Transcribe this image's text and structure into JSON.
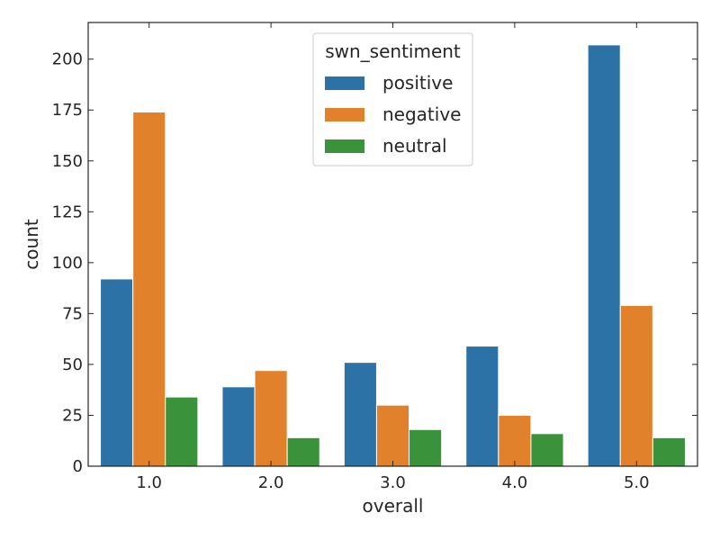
{
  "chart_data": {
    "type": "bar",
    "xlabel": "overall",
    "ylabel": "count",
    "categories": [
      "1.0",
      "2.0",
      "3.0",
      "4.0",
      "5.0"
    ],
    "ylim": [
      0,
      218
    ],
    "yticks": [
      0,
      25,
      50,
      75,
      100,
      125,
      150,
      175,
      200
    ],
    "grid": false,
    "legend": {
      "title": "swn_sentiment",
      "placement": "top-center"
    },
    "series": [
      {
        "name": "positive",
        "color": "#2d72a6",
        "values": [
          92,
          39,
          51,
          59,
          207
        ]
      },
      {
        "name": "negative",
        "color": "#e1812c",
        "values": [
          174,
          47,
          30,
          25,
          79
        ]
      },
      {
        "name": "neutral",
        "color": "#3a923a",
        "values": [
          34,
          14,
          18,
          16,
          14
        ]
      }
    ]
  }
}
